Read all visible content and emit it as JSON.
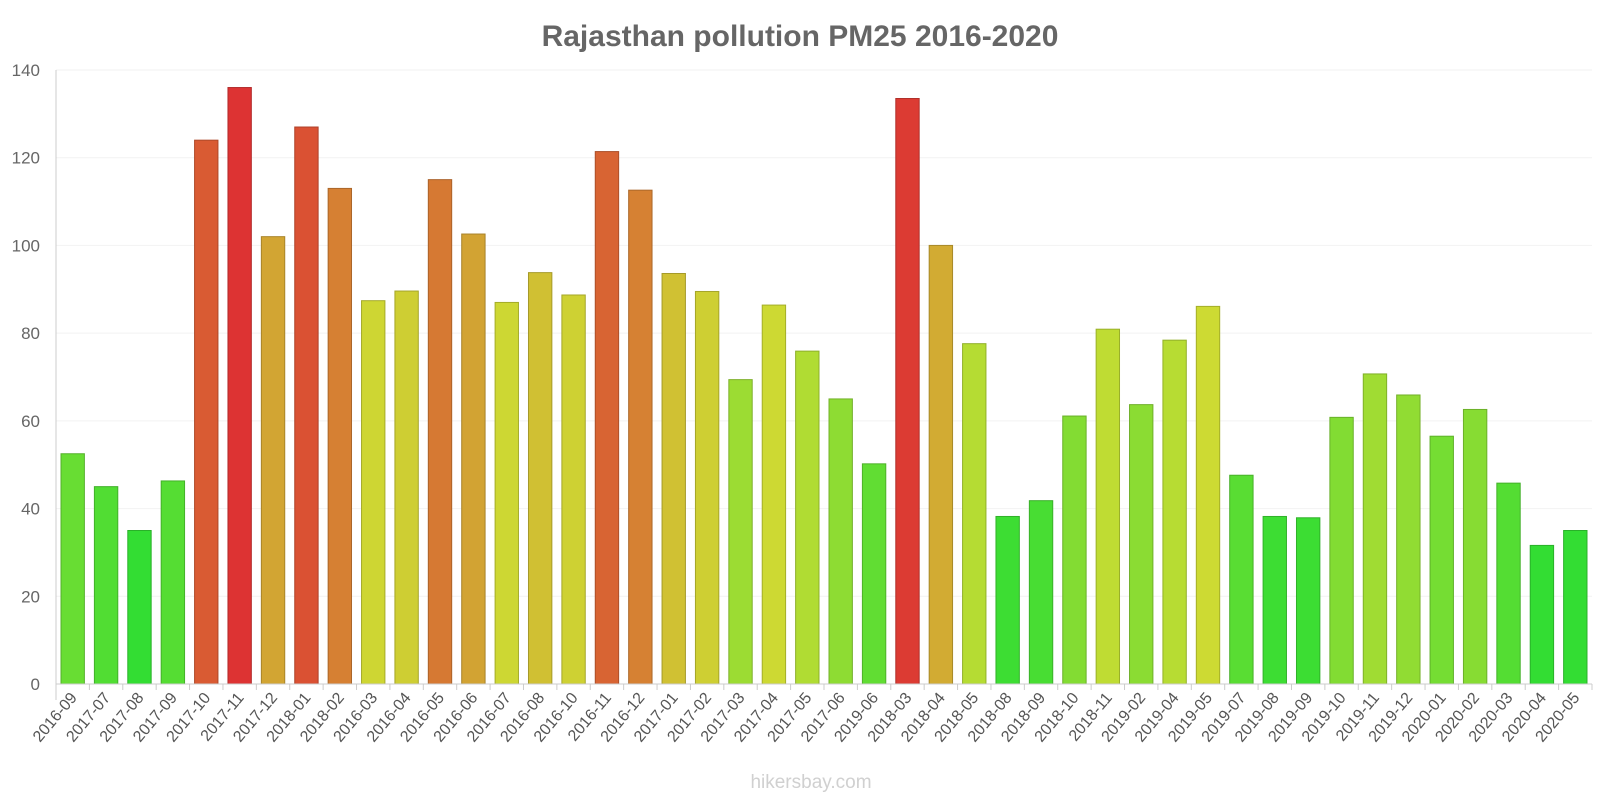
{
  "chart_data": {
    "type": "bar",
    "title": "Rajasthan pollution PM25 2016-2020",
    "xlabel": "",
    "ylabel": "",
    "ylim": [
      0,
      140
    ],
    "yticks": [
      0,
      20,
      40,
      60,
      80,
      100,
      120,
      140
    ],
    "grid": true,
    "legend": "none",
    "categories": [
      "2016-09",
      "2017-07",
      "2017-08",
      "2017-09",
      "2017-10",
      "2017-11",
      "2017-12",
      "2018-01",
      "2018-02",
      "2016-03",
      "2016-04",
      "2016-05",
      "2016-06",
      "2016-07",
      "2016-08",
      "2016-10",
      "2016-11",
      "2016-12",
      "2017-01",
      "2017-02",
      "2017-03",
      "2017-04",
      "2017-05",
      "2017-06",
      "2019-06",
      "2018-03",
      "2018-04",
      "2018-05",
      "2018-08",
      "2018-09",
      "2018-10",
      "2018-11",
      "2019-02",
      "2019-04",
      "2019-05",
      "2019-07",
      "2019-08",
      "2019-09",
      "2019-10",
      "2019-11",
      "2019-12",
      "2020-01",
      "2020-02",
      "2020-03",
      "2020-04",
      "2020-05"
    ],
    "values": [
      52.5,
      45,
      35,
      46.3,
      124,
      136,
      102,
      127,
      113,
      87.4,
      89.6,
      115,
      102.6,
      87,
      93.8,
      88.7,
      121.4,
      112.6,
      93.6,
      89.5,
      69.4,
      86.4,
      75.9,
      65,
      50.2,
      133.5,
      100,
      77.6,
      38.2,
      41.8,
      61.1,
      80.9,
      63.7,
      78.4,
      86.1,
      47.6,
      38.2,
      37.9,
      60.8,
      70.7,
      65.9,
      56.5,
      62.6,
      45.8,
      31.6,
      35
    ],
    "color_scale": [
      "#33dd33",
      "#cddc33",
      "#dd3333"
    ]
  },
  "credit": "hikersbay.com"
}
